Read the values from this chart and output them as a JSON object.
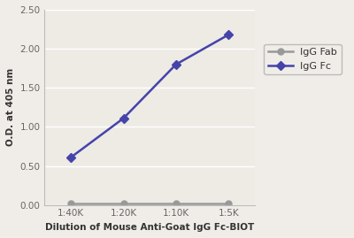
{
  "x_labels": [
    "1:40K",
    "1:20K",
    "1:10K",
    "1:5K"
  ],
  "x_positions": [
    0,
    1,
    2,
    3
  ],
  "igg_fc_values": [
    0.61,
    1.11,
    1.8,
    2.18
  ],
  "igg_fab_values": [
    0.02,
    0.02,
    0.02,
    0.02
  ],
  "fc_color": "#4444aa",
  "fab_color": "#999999",
  "fc_label": "IgG Fc",
  "fab_label": "IgG Fab",
  "xlabel": "Dilution of Mouse Anti-Goat IgG Fc-BIOT",
  "ylabel": "O.D. at 405 nm",
  "ylim": [
    0.0,
    2.5
  ],
  "yticks": [
    0.0,
    0.5,
    1.0,
    1.5,
    2.0,
    2.5
  ],
  "background_color": "#f0ede8",
  "plot_bg_color": "#eeeae4",
  "grid_color": "#ffffff",
  "spine_color": "#bbbbbb",
  "tick_color": "#666666",
  "label_color": "#333333",
  "marker_size": 5,
  "line_width": 1.8,
  "legend_fontsize": 8,
  "axis_fontsize": 7.5,
  "tick_fontsize": 7.5
}
